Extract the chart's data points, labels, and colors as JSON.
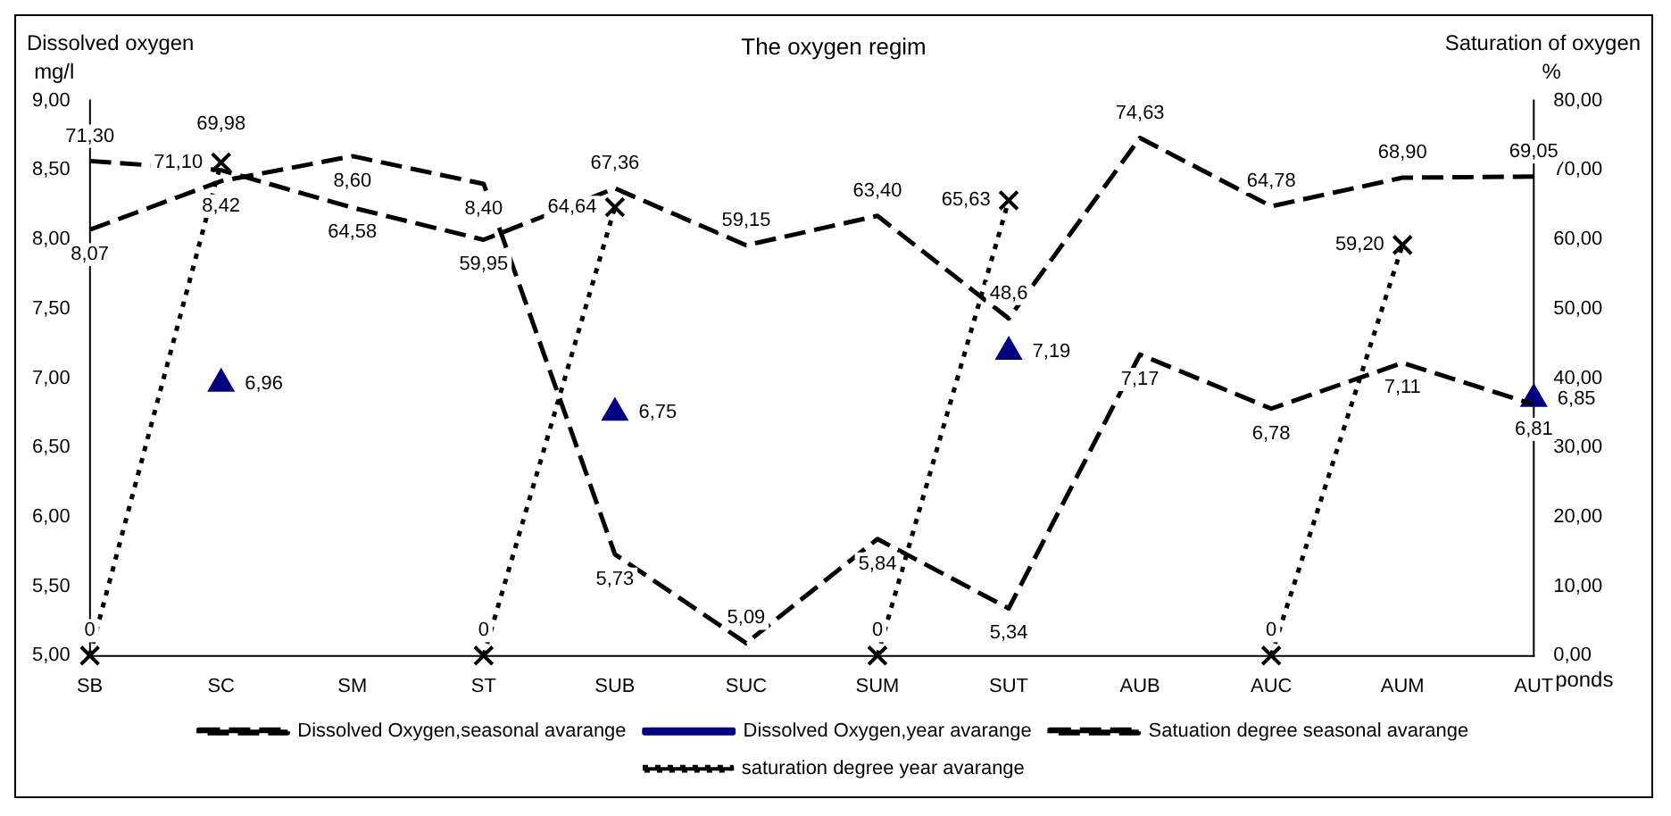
{
  "chart_data": {
    "type": "line",
    "title": "The oxygen regim",
    "xlabel": "ponds",
    "ylabel": "Dissolved oxygen\nmg/l",
    "y2label": "Saturation of oxygen\n%",
    "categories": [
      "SB",
      "SC",
      "SM",
      "ST",
      "SUB",
      "SUC",
      "SUM",
      "SUT",
      "AUB",
      "AUC",
      "AUM",
      "AUT"
    ],
    "series": [
      {
        "name": "Dissolved Oxygen,seasonal avarange",
        "color": "#000000",
        "line_style": "dashed",
        "marker": "none",
        "values": [
          8.07,
          8.42,
          8.6,
          8.4,
          5.73,
          5.09,
          5.84,
          5.34,
          7.17,
          6.78,
          7.11,
          6.81
        ],
        "value_labels": [
          "8,07",
          "8,42",
          "8,60",
          "8,40",
          "5,73",
          "5,09",
          "5,84",
          "5,34",
          "7,17",
          "6,78",
          "7,11",
          "6,81"
        ]
      },
      {
        "name": "Dissolved Oxygen,year avarange",
        "type": "scatter",
        "color": "#000080",
        "marker": "triangle",
        "values": [
          null,
          6.96,
          null,
          null,
          6.75,
          null,
          null,
          7.19,
          null,
          null,
          null,
          6.85
        ],
        "value_labels": [
          null,
          "6,96",
          null,
          null,
          "6,75",
          null,
          null,
          "7,19",
          null,
          null,
          null,
          "6,85"
        ]
      },
      {
        "name": "Satuation degree seasonal avarange",
        "color": "#000000",
        "axis": "y2",
        "line_style": "dashed",
        "marker": "none",
        "values": [
          71.3,
          69.98,
          64.58,
          59.95,
          67.36,
          59.15,
          63.4,
          48.6,
          74.63,
          64.78,
          68.9,
          69.05
        ],
        "value_labels": [
          "71,30",
          "69,98",
          "64,58",
          "59,95",
          "67,36",
          "59,15",
          "63,40",
          "48,6",
          "74,63",
          "64,78",
          "68,90",
          "69,05"
        ]
      },
      {
        "name": "saturation degree year avarange",
        "color": "#000000",
        "axis": "y2",
        "line_style": "dotted",
        "marker": "cross",
        "values": [
          0,
          71.1,
          null,
          0,
          64.64,
          null,
          0,
          65.63,
          null,
          0,
          59.2,
          null
        ],
        "value_labels": [
          "0",
          "71,10",
          null,
          "0",
          "64,64",
          null,
          "0",
          "65,63",
          null,
          "0",
          "59,20",
          null
        ]
      }
    ],
    "ylim": [
      5,
      9
    ],
    "yticks": [
      {
        "value": 5,
        "label": "5,00"
      },
      {
        "value": 5.5,
        "label": "5,50"
      },
      {
        "value": 6,
        "label": "6,00"
      },
      {
        "value": 6.5,
        "label": "6,50"
      },
      {
        "value": 7,
        "label": "7,00"
      },
      {
        "value": 7.5,
        "label": "7,50"
      },
      {
        "value": 8,
        "label": "8,00"
      },
      {
        "value": 8.5,
        "label": "8,50"
      },
      {
        "value": 9,
        "label": "9,00"
      }
    ],
    "y2lim": [
      0,
      80
    ],
    "y2ticks": [
      {
        "value": 0,
        "label": "0,00"
      },
      {
        "value": 10,
        "label": "10,00"
      },
      {
        "value": 20,
        "label": "20,00"
      },
      {
        "value": 30,
        "label": "30,00"
      },
      {
        "value": 40,
        "label": "40,00"
      },
      {
        "value": 50,
        "label": "50,00"
      },
      {
        "value": 60,
        "label": "60,00"
      },
      {
        "value": 70,
        "label": "70,00"
      },
      {
        "value": 80,
        "label": "80,00"
      }
    ],
    "grid": false,
    "legend": "bottom"
  }
}
